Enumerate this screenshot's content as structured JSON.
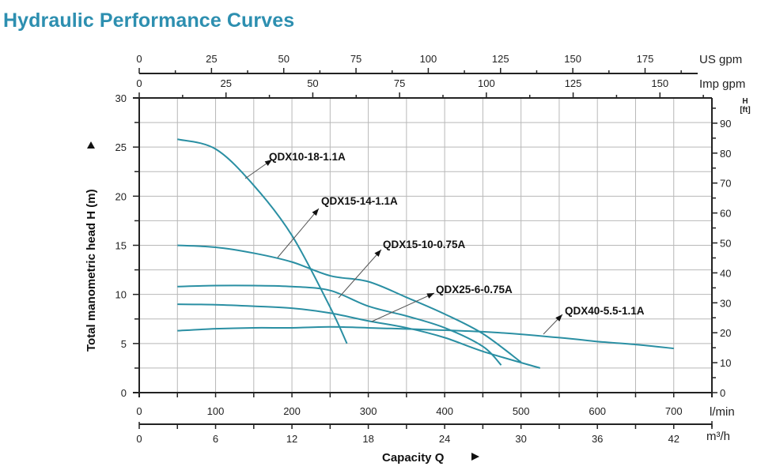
{
  "page": {
    "title": "Hydraulic Performance Curves"
  },
  "chart_data": {
    "type": "line",
    "title": "Hydraulic Performance Curves",
    "xlabel": "Capacity Q",
    "ylabel": "Total manometric head H (m)",
    "xlim": [
      0,
      750
    ],
    "ylim": [
      0,
      30
    ],
    "grid": true,
    "axes": {
      "x_primary": {
        "unit": "l/min",
        "ticks": [
          0,
          100,
          200,
          300,
          400,
          500,
          600,
          700
        ]
      },
      "x_secondary_bottom": {
        "unit": "m³/h",
        "ticks": [
          0,
          6,
          12,
          18,
          24,
          30,
          36,
          42
        ]
      },
      "x_top_1": {
        "unit": "US gpm",
        "ticks": [
          0,
          25,
          50,
          75,
          100,
          125,
          150,
          175
        ]
      },
      "x_top_2": {
        "unit": "Imp gpm",
        "ticks": [
          0,
          25,
          50,
          75,
          100,
          125,
          150
        ]
      },
      "y_left": {
        "unit": "H (m)",
        "ticks": [
          0,
          5,
          10,
          15,
          20,
          25,
          30
        ]
      },
      "y_right": {
        "unit": "H [ft]",
        "unit_line1": "H",
        "unit_line2": "[ft]",
        "ticks": [
          0,
          10,
          20,
          30,
          40,
          50,
          60,
          70,
          80,
          90
        ]
      }
    },
    "series": [
      {
        "name": "QDX10-18-1.1A",
        "x": [
          50,
          100,
          150,
          200,
          250,
          272
        ],
        "y": [
          25.8,
          24.8,
          21.1,
          16.0,
          8.7,
          5.0
        ]
      },
      {
        "name": "QDX15-14-1.1A",
        "x": [
          50,
          100,
          150,
          200,
          250,
          300,
          350,
          400,
          450,
          500
        ],
        "y": [
          15.0,
          14.8,
          14.2,
          13.3,
          11.9,
          11.3,
          9.7,
          8.0,
          6.0,
          3.1
        ]
      },
      {
        "name": "QDX15-10-0.75A",
        "x": [
          50,
          100,
          150,
          200,
          250,
          300,
          350,
          400,
          450,
          474
        ],
        "y": [
          10.8,
          10.9,
          10.9,
          10.8,
          10.4,
          8.8,
          7.8,
          6.6,
          4.7,
          2.8
        ]
      },
      {
        "name": "QDX25-6-0.75A",
        "x": [
          50,
          100,
          150,
          200,
          250,
          300,
          350,
          400,
          450,
          525
        ],
        "y": [
          9.0,
          8.95,
          8.8,
          8.6,
          8.1,
          7.3,
          6.6,
          5.6,
          4.2,
          2.5
        ]
      },
      {
        "name": "QDX40-5.5-1.1A",
        "x": [
          50,
          100,
          150,
          200,
          250,
          300,
          450,
          550,
          600,
          650,
          700
        ],
        "y": [
          6.3,
          6.5,
          6.6,
          6.6,
          6.7,
          6.6,
          6.2,
          5.6,
          5.2,
          4.9,
          4.5
        ]
      }
    ],
    "annotations": [
      {
        "text": "QDX10-18-1.1A",
        "series": 0
      },
      {
        "text": "QDX15-14-1.1A",
        "series": 1
      },
      {
        "text": "QDX15-10-0.75A",
        "series": 2
      },
      {
        "text": "QDX25-6-0.75A",
        "series": 3
      },
      {
        "text": "QDX40-5.5-1.1A",
        "series": 4
      }
    ],
    "colors": {
      "curve": "#2a8fa3",
      "title": "#2d8fb0",
      "grid": "#b8b8b8",
      "axis": "#222222",
      "leader": "#555555"
    }
  }
}
